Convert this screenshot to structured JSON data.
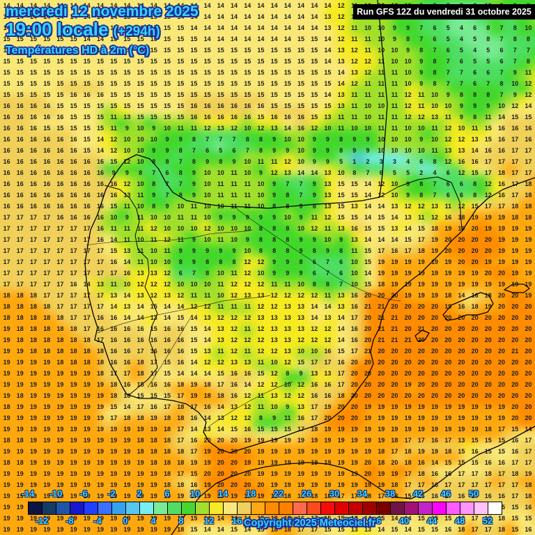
{
  "header": {
    "date_line": "mercredi 12 novembre 2025",
    "time_line": "19:00 locale",
    "offset_label": "(+294h)",
    "variable_line": "Températures HD à 2m (°C)"
  },
  "run_info": {
    "label": "Run GFS 12Z du vendredi 31 octobre 2025"
  },
  "copyright_label": "Copyright 2025 Meteociel.fr",
  "colors": {
    "accent_cyan": "#35d6f8",
    "outline_navy": "#1b2f9e",
    "run_box_bg": "#000000",
    "run_box_text": "#ffffff",
    "map_line": "#000000"
  },
  "legend": {
    "unit": "°C",
    "top_labels": [
      -14,
      -10,
      -6,
      -2,
      2,
      6,
      10,
      14,
      18,
      22,
      26,
      30,
      34,
      38,
      42,
      46,
      50
    ],
    "bottom_labels": [
      -12,
      -8,
      -4,
      0,
      4,
      8,
      12,
      16,
      20,
      24,
      28,
      32,
      36,
      40,
      44,
      48,
      52
    ],
    "cell_colors": [
      "#0b1442",
      "#143a66",
      "#1e55a8",
      "#1818cf",
      "#2040ff",
      "#3c70ff",
      "#34a2ee",
      "#55c8f0",
      "#79eef2",
      "#7ce996",
      "#52dc66",
      "#46d631",
      "#a2df31",
      "#f5e929",
      "#f8e87c",
      "#eed05e",
      "#ffa816",
      "#ff8c00",
      "#ff7f00",
      "#ff6a4d",
      "#fb4b21",
      "#f70c0c",
      "#e00000",
      "#c20000",
      "#a00000",
      "#7a0000",
      "#6e1446",
      "#a01273",
      "#c323c8",
      "#fa05fa",
      "#ff5cff",
      "#ff94ff",
      "#ffc2ff",
      "#ffffff"
    ]
  },
  "chart_data": {
    "type": "heatmap",
    "title": "Températures HD à 2m (°C) — GFS +294h",
    "unit": "°C",
    "cols": 40,
    "rows": 48,
    "palette_min": -14,
    "palette_step": 2,
    "palette": [
      "#0b1442",
      "#143a66",
      "#1e55a8",
      "#1818cf",
      "#2040ff",
      "#3c70ff",
      "#34a2ee",
      "#55c8f0",
      "#79eef2",
      "#7ce996",
      "#52dc66",
      "#46d631",
      "#a2df31",
      "#f5e929",
      "#f8e87c",
      "#eed05e",
      "#ffa816",
      "#ff8c00",
      "#ff7f00",
      "#ff6a4d",
      "#fb4b21",
      "#f70c0c",
      "#e00000",
      "#c20000",
      "#a00000",
      "#7a0000",
      "#6e1446",
      "#a01273",
      "#c323c8",
      "#fa05fa",
      "#ff5cff",
      "#ff94ff",
      "#ffc2ff"
    ],
    "values_rows": [
      "14 14 14 14 14 14 14 14 14 14 14 14 14 14 14 14 14 14 14 14 14 14 14 14 14 12 11 10 10 10 10 9 8 8 8 8 10 9 9 8",
      "14 14 14 14 14 14 14 14 14 15 15 15 15 14 14 14 14 14 14 14 14 14 14 14 13 12 11 11 10 9 9 7 6 5 5 5 8 8 9 9",
      "14 14 14 14 14 14 14 14 15 15 15 15 15 15 14 14 14 14 14 14 14 14 14 14 13 12 11 10 10 9 9 7 6 5 4 6 8 7 8 10",
      "15 15 15 15 15 15 14 14 15 15 15 15 15 15 15 14 14 14 14 14 14 14 15 15 14 12 11 11 10 9 8 7 6 5 4 5 8 7 8 8",
      "15 15 15 15 15 15 15 15 15 15 15 15 15 15 15 15 15 15 15 15 15 15 15 15 14 13 12 11 10 10 9 8 7 6 5 4 5 6 7 7",
      "15 15 15 15 15 15 15 15 15 15 15 15 15 15 15 15 15 15 15 15 15 15 15 15 14 13 12 12 11 10 10 9 8 7 6 5 5 6 7 8",
      "15 15 15 15 15 15 15 15 15 15 15 15 15 15 15 15 15 15 15 15 15 15 15 15 15 14 13 12 11 11 10 9 8 7 7 6 6 7 9 11",
      "15 15 15 15 15 15 15 15 15 15 15 15 15 15 15 15 15 15 15 15 15 15 15 15 15 14 12 11 11 11 10 9 8 7 7 6 7 8 10 12",
      "15 15 15 15 15 16 16 16 15 15 15 15 15 15 15 15 15 15 15 15 15 15 15 15 14 13 11 11 11 11 12 11 10 9 8 8 8 7 9 12",
      "16 16 16 16 15 15 15 15 15 15 15 15 15 15 16 16 16 16 16 16 15 15 15 15 15 13 11 10 10 11 12 11 10 10 9 9 9 10 12 14",
      "16 16 16 16 16 15 15 15 11 13 15 15 15 15 16 16 16 16 16 15 16 16 16 15 13 11 11 10 11 11 12 12 13 11 9 8 11 14 15 15",
      "16 16 16 15 15 15 15 15 11 9 10 9 10 11 11 12 13 12 10 12 13 14 16 12 10 11 10 10 11 11 10 10 11 12 10 11 15 16 16 16",
      "16 16 16 16 16 16 15 14 12 10 10 10 9 9 8 7 7 7 8 8 9 10 10 9 9 8 9 9 10 10 10 9 10 12 12 13 15 16 17 16",
      "16 16 16 16 16 16 15 14 12 10 10 9 9 8 7 6 5 6 7 8 9 9 10 9 9 8 9 9 10 10 10 10 11 13 13 14 16 16 17 17",
      "16 16 16 16 16 16 16 16 15 12 10 8 8 7 8 9 8 9 10 11 11 12 10 9 9 5 1 2 3 3 4 6 8 12 16 16 17 17 17 17",
      "16 16 16 16 16 16 16 16 9 9 8 7 6 8 9 10 10 11 10 9 12 13 14 14 13 10 8 7 6 5 5 2 4 6 12 15 17 18 17 17",
      "16 16 16 16 16 16 16 16 16 12 10 8 7 7 9 10 11 11 11 10 9 7 7 9 13 15 15 14 12 10 9 8 7 6 6 8 12 16 17 18",
      "16 16 16 16 16 16 16 16 16 13 11 9 7 8 9 10 11 11 11 10 9 8 7 9 13 15 15 14 12 10 9 8 7 6 6 8 12 16 17 18",
      "16 16 16 16 16 16 16 16 15 11 10 8 9 10 11 10 10 11 11 10 8 8 9 8 13 15 13 14 14 13 12 12 13 11 12 15 17 17 18 18",
      "17 17 17 17 16 16 16 16 10 9 11 10 10 11 11 10 9 9 9 9 9 10 9 11 12 15 15 14 15 14 13 11 12 16 18 19 19 19 18 18",
      "17 17 17 17 17 17 17 16 11 11 11 12 10 10 10 12 10 10 10 8 8 8 10 12 11 13 16 15 15 13 14 15 18 19 19 20 19 19 19 19",
      "17 17 17 17 17 17 17 16 14 11 10 11 12 11 9 10 11 10 9 8 8 8 9 9 10 9 13 14 14 14 15 17 19 20 20 20 20 19 19 19",
      "17 17 17 17 17 17 17 17 15 13 11 10 11 9 9 9 9 9 10 8 8 8 9 8 9 8 11 15 17 16 17 18 19 20 20 20 20 19 19 19",
      "17 17 17 17 17 17 17 17 16 14 11 10 10 8 9 8 8 8 12 12 9 9 8 6 7 6 10 15 19 19 19 19 19 19 20 20 19 19 19 19",
      "17 17 17 17 17 17 17 17 17 16 13 13 12 6 7 8 10 11 12 10 9 9 9 6 7 6 10 14 19 19 19 19 19 19 19 19 20 20 19 19",
      "17 17 17 17 17 16 14 13 11 10 12 12 12 10 10 10 11 12 12 12 11 11 10 8 8 7 10 15 18 19 19 19 19 19 19 19 19 19 19 19",
      "18 18 18 17 17 17 17 17 13 14 13 12 13 12 11 11 10 12 13 13 12 12 12 12 11 13 16 20 20 20 19 19 19 18 14 16 18 20 20 19",
      "18 18 18 18 17 17 17 17 14 13 14 15 14 14 12 12 11 11 11 12 12 13 13 14 14 13 16 21 21 20 20 20 20 19 16 18 19 20 20 20",
      "18 18 18 18 18 17 17 16 16 14 14 13 14 15 14 13 12 12 12 13 13 13 13 14 13 14 17 20 21 21 20 20 20 20 20 20 20 20 20 20",
      "19 18 18 18 18 18 17 16 16 16 16 15 16 16 15 14 13 12 11 12 13 13 13 12 12 14 16 20 21 21 20 21 20 20 20 20 20 20 20 20",
      "19 18 18 18 18 18 18 17 16 16 16 16 16 16 15 14 13 12 12 12 13 13 12 12 12 14 16 20 21 21 21 20 20 20 20 20 20 20 20 20",
      "19 19 18 18 18 18 18 18 16 16 17 16 16 16 15 13 11 12 11 12 12 13 10 10 16 15 17 21 20 20 20 20 20 20 20 20 20 20 21 20",
      "19 19 19 19 18 18 18 18 16 16 18 17 15 16 14 12 12 13 13 11 10 12 15 17 17 16 20 20 20 20 20 20 20 20 20 20 20 20 20 20",
      "19 19 19 19 19 19 19 18 17 17 18 17 15 14 14 14 15 16 16 15 12 8 9 13 13 17 20 20 20 20 20 20 20 20 20 20 20 20 20 20",
      "19 19 19 19 19 19 19 19 18 16 15 16 16 18 19 18 17 16 14 12 12 10 12 16 16 17 20 20 20 20 19 20 20 20 20 20 20 20 20 20",
      "19 18 19 19 19 19 19 19 18 16 15 15 15 17 19 18 18 16 12 11 13 12 12 16 16 18 20 20 20 20 20 20 20 20 20 20 20 20 20 20",
      "18 19 19 19 19 19 19 19 15 14 17 16 17 18 17 16 14 13 12 11 10 9 13 17 19 20 20 19 19 19 19 19 19 19 19 19 19 19 20 20",
      "19 19 19 19 19 19 19 19 17 18 18 19 18 18 16 14 13 12 12 8 9 11 16 17 20 20 20 19 19 19 19 19 19 19 19 19 19 19 20 20",
      "19 19 19 19 19 19 19 19 19 19 19 19 18 17 14 13 14 15 16 15 15 15 17 18 19 19 19 19 19 19 19 19 19 19 19 19 18 17 15 14",
      "18 18 19 19 19 19 19 19 19 19 18 18 18 17 16 20 20 20 19 19 19 19 19 19 19 19 19 19 19 18 17 17 16 17 13 15 15 15 16 17",
      "19 19 19 19 19 19 19 19 19 19 18 18 18 18 17 19 20 20 20 19 19 19 19 19 19 19 19 19 18 17 18 19 19 18 15 16 15 15 16 17",
      "18 18 19 19 19 19 19 19 19 19 19 18 18 18 19 19 20 20 19 19 19 19 19 19 19 19 19 20 18 20 18 16 14 15 15 15 16 16 17 17",
      "19 19 19 19 19 19 19 19 19 19 19 19 18 17 15 20 20 20 20 19 19 19 19 19 19 19 19 20 19 19 17 18 16 16 17 17 18 17 18 19",
      "19 19 19 19 19 19 19 19 19 19 19 19 18 18 16 19 20 20 20 20 19 19 19 19 19 19 19 19 19 18 17 17 16 17 17 17 17 17 17 18",
      "19 19 19 19 19 19 19 19 19 19 19 19 19 19 17 19 19 19 19 19 18 18 18 18 18 17 17 18 17 18 15 16 16 17 16 17 16 16 17 18",
      "19 19 19 19 19 19 19 19 19 19 19 19 19 19 18 19 19 19 19 19 18 18 17 17 17 16 16 17 17 16 15 16 16 14 15 15 15 15 15 16",
      "19 19 19 19 19 19 19 19 19 19 19 19 19 19 15 14 14 14 14 15 18 18 16 17 15 15 13 14 15 14 14 15 15 15 18 17 17 18 15 15",
      "19 19 19 19 19 19 19 19 19 19 19 19 19 18 15 14 14 15 14 15 18 18 17 17 15 15 13 13 14 15 14 15 15 16 18 17 17 18 15 16"
    ]
  }
}
